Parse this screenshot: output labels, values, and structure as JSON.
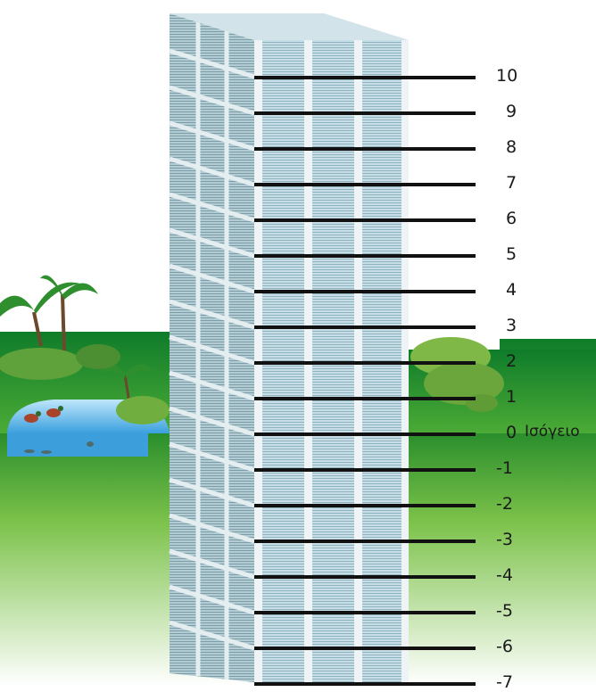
{
  "floor_labels": [
    "10",
    "9",
    "8",
    "7",
    "6",
    "5",
    "4",
    "3",
    "2",
    "1",
    "0",
    "-1",
    "-2",
    "-3",
    "-4",
    "-5",
    "-6",
    "-7"
  ],
  "ground_floor_label": "Ισόγειο",
  "colors": {
    "grass_top": "#1f8a2a",
    "grass_bottom": "#ffffff",
    "pond": "#7ec8ef",
    "building_front": "#b9d3dc",
    "building_side": "#9fb9c2",
    "level_line": "#111111"
  },
  "icons": [
    "palm-tree-icon",
    "bush-icon",
    "pond-icon",
    "duck-icon",
    "fish-icon"
  ]
}
